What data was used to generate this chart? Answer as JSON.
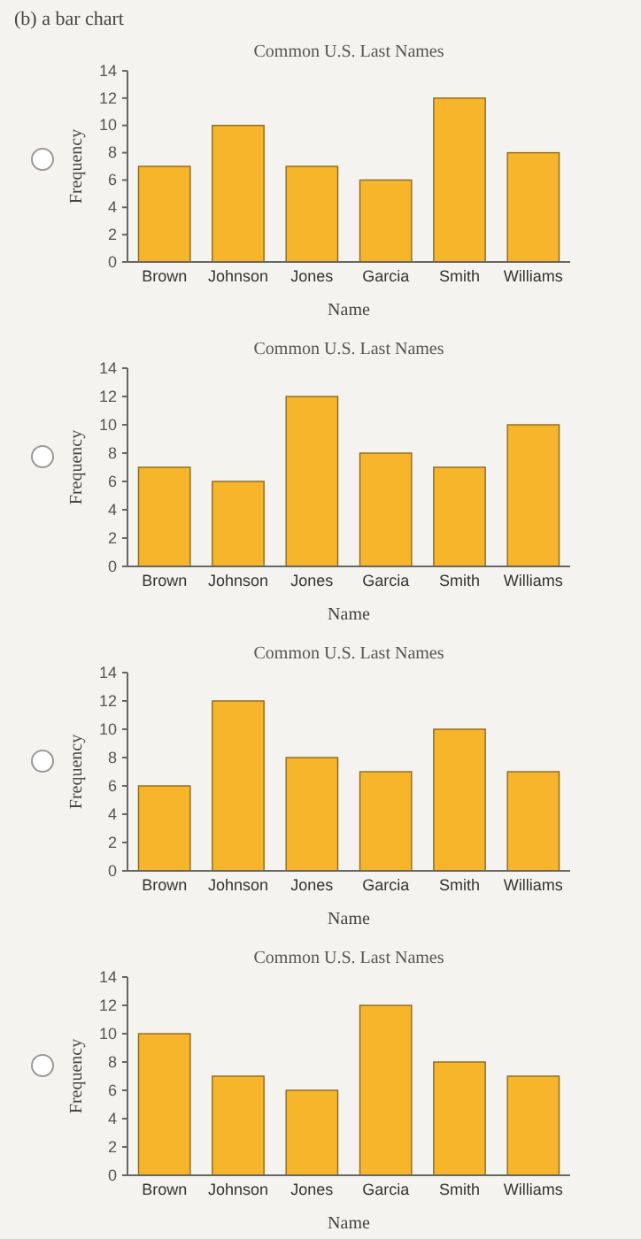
{
  "chart_data": [
    {
      "type": "bar",
      "title": "Common U.S. Last Names",
      "xlabel": "Name",
      "ylabel": "Frequency",
      "annotations": [
        "(b) a bar chart"
      ],
      "categories": [
        "Brown",
        "Johnson",
        "Jones",
        "Garcia",
        "Smith",
        "Williams"
      ],
      "values": [
        7,
        10,
        7,
        6,
        12,
        8
      ],
      "color": "#f7b52c",
      "ylim": [
        0,
        14
      ],
      "yticks": [
        0,
        2,
        4,
        6,
        8,
        10,
        12,
        14
      ]
    },
    {
      "type": "bar",
      "title": "Common U.S. Last Names",
      "xlabel": "Name",
      "ylabel": "Frequency",
      "categories": [
        "Brown",
        "Johnson",
        "Jones",
        "Garcia",
        "Smith",
        "Williams"
      ],
      "values": [
        7,
        6,
        12,
        8,
        7,
        10
      ],
      "color": "#f7b52c",
      "ylim": [
        0,
        14
      ],
      "yticks": [
        0,
        2,
        4,
        6,
        8,
        10,
        12,
        14
      ]
    },
    {
      "type": "bar",
      "title": "Common U.S. Last Names",
      "xlabel": "Name",
      "ylabel": "Frequency",
      "categories": [
        "Brown",
        "Johnson",
        "Jones",
        "Garcia",
        "Smith",
        "Williams"
      ],
      "values": [
        6,
        12,
        8,
        7,
        10,
        7
      ],
      "color": "#f7b52c",
      "ylim": [
        0,
        14
      ],
      "yticks": [
        0,
        2,
        4,
        6,
        8,
        10,
        12,
        14
      ]
    },
    {
      "type": "bar",
      "title": "Common U.S. Last Names",
      "xlabel": "Name",
      "ylabel": "Frequency",
      "categories": [
        "Brown",
        "Johnson",
        "Jones",
        "Garcia",
        "Smith",
        "Williams"
      ],
      "values": [
        10,
        7,
        6,
        12,
        8,
        7
      ],
      "color": "#f7b52c",
      "ylim": [
        0,
        14
      ],
      "yticks": [
        0,
        2,
        4,
        6,
        8,
        10,
        12,
        14
      ]
    }
  ]
}
